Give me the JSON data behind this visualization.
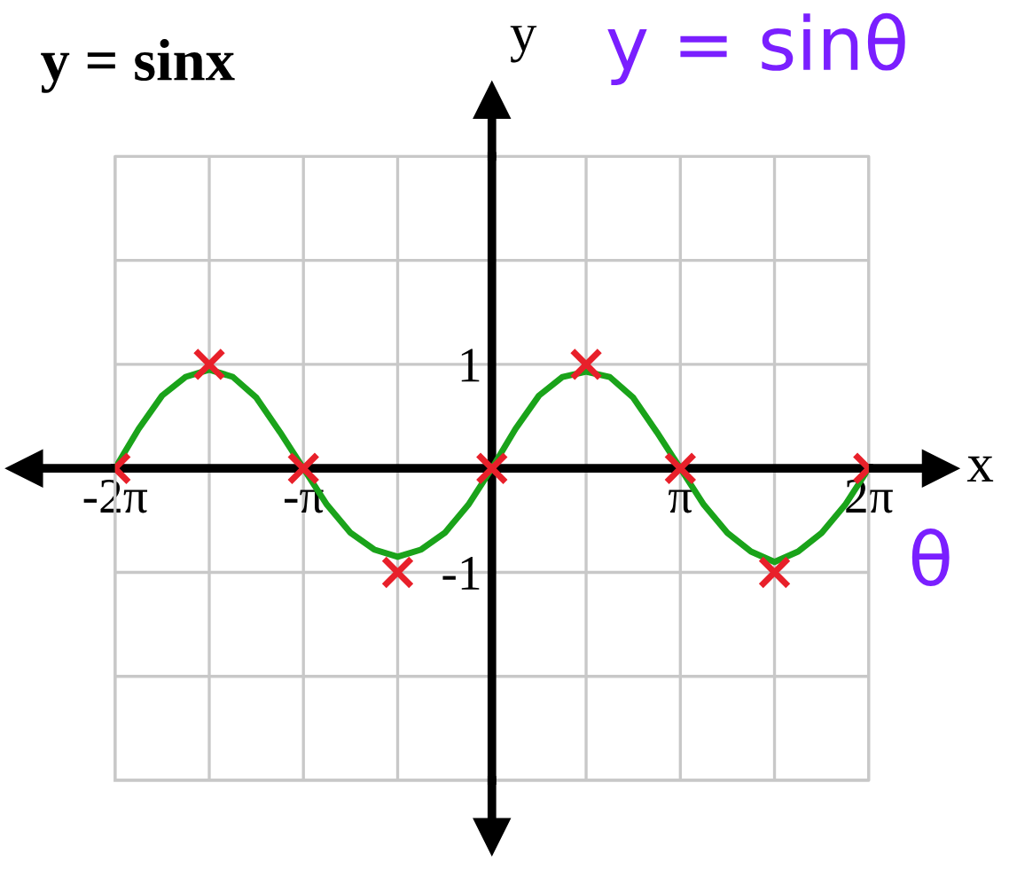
{
  "chart_data": {
    "type": "line",
    "title": "y = sinx",
    "xlabel": "x",
    "ylabel": "y",
    "annotations": [
      "y = sinθ",
      "θ"
    ],
    "xlim": [
      -6.283,
      6.283
    ],
    "ylim": [
      -3,
      3
    ],
    "xticks": [
      {
        "value": -6.283,
        "label": "-2π"
      },
      {
        "value": -4.712,
        "label": null
      },
      {
        "value": -3.142,
        "label": "-π"
      },
      {
        "value": -1.571,
        "label": null
      },
      {
        "value": 1.571,
        "label": null
      },
      {
        "value": 3.142,
        "label": "π"
      },
      {
        "value": 4.712,
        "label": null
      },
      {
        "value": 6.283,
        "label": "2π"
      }
    ],
    "yticks": [
      {
        "value": -3,
        "label": null
      },
      {
        "value": -2,
        "label": null
      },
      {
        "value": -1,
        "label": "-1"
      },
      1,
      {
        "value": 2,
        "label": null
      },
      {
        "value": 3,
        "label": null
      }
    ],
    "grid": true,
    "series": [
      {
        "color": "#1aa31a",
        "marker": "none",
        "line_style": "solid",
        "x": [
          -6.283,
          -5.89,
          -5.498,
          -5.105,
          -4.712,
          -4.32,
          -3.927,
          -3.534,
          -3.142,
          -2.749,
          -2.356,
          -1.963,
          -1.571,
          -1.178,
          -0.785,
          -0.393,
          0,
          0.393,
          0.785,
          1.178,
          1.571,
          1.963,
          2.356,
          2.749,
          3.142,
          3.534,
          3.927,
          4.32,
          4.712,
          5.105,
          5.498,
          5.89,
          6.283
        ],
        "values": [
          0,
          0.38,
          0.7,
          0.88,
          0.95,
          0.88,
          0.68,
          0.35,
          0,
          -0.35,
          -0.62,
          -0.78,
          -0.85,
          -0.78,
          -0.62,
          -0.35,
          0,
          0.38,
          0.7,
          0.88,
          0.93,
          0.88,
          0.68,
          0.35,
          0,
          -0.35,
          -0.62,
          -0.8,
          -0.9,
          -0.8,
          -0.62,
          -0.35,
          0
        ]
      },
      {
        "type": "scatter",
        "color": "#e8202a",
        "marker": "cross",
        "x": [
          -6.283,
          -4.712,
          -3.142,
          -1.571,
          0,
          1.571,
          3.142,
          4.712,
          6.283
        ],
        "values": [
          0,
          1,
          0,
          -1,
          0,
          1,
          0,
          -1,
          0
        ]
      }
    ]
  }
}
